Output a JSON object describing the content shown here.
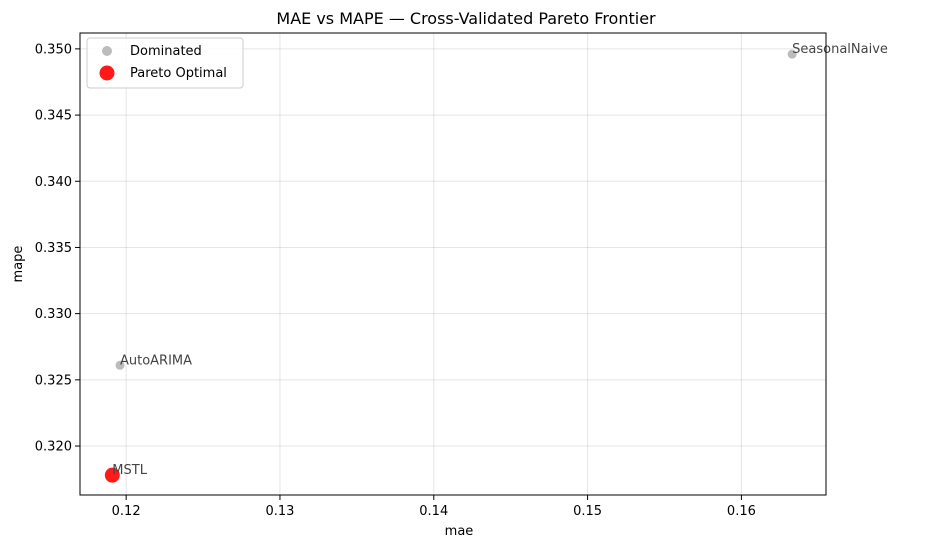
{
  "chart_data": {
    "type": "scatter",
    "title": "MAE vs MAPE — Cross-Validated Pareto Frontier",
    "xlabel": "mae",
    "ylabel": "mape",
    "xlim": [
      0.117,
      0.1655
    ],
    "ylim": [
      0.3163,
      0.3512
    ],
    "xticks": [
      0.12,
      0.13,
      0.14,
      0.15,
      0.16
    ],
    "yticks": [
      0.32,
      0.325,
      0.33,
      0.335,
      0.34,
      0.345,
      0.35
    ],
    "grid": true,
    "legend_position": "top-left",
    "series": [
      {
        "name": "Dominated",
        "color": "#a0a0a0",
        "points": [
          {
            "label": "SeasonalNaive",
            "x": 0.1633,
            "y": 0.3496
          },
          {
            "label": "AutoARIMA",
            "x": 0.1196,
            "y": 0.3261
          }
        ]
      },
      {
        "name": "Pareto Optimal",
        "color": "#ff0000",
        "points": [
          {
            "label": "MSTL",
            "x": 0.1191,
            "y": 0.3178
          }
        ]
      }
    ]
  }
}
